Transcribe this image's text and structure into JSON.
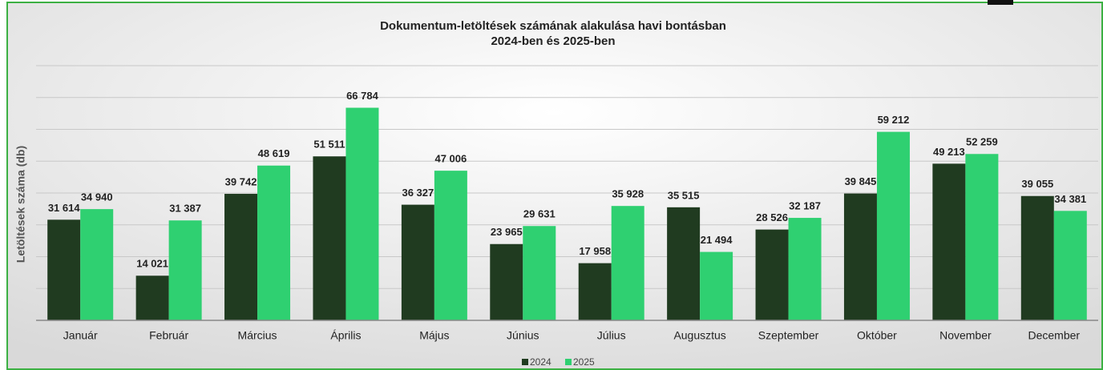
{
  "chart_data": {
    "type": "bar",
    "title": "Dokumentum-letöltések számának alakulása havi bontásban",
    "subtitle": "2024-ben és 2025-ben",
    "y_label": "Letöltések száma (db)",
    "categories": [
      "Január",
      "Február",
      "Március",
      "Április",
      "Május",
      "Június",
      "Július",
      "Augusztus",
      "Szeptember",
      "Október",
      "November",
      "December"
    ],
    "series": [
      {
        "name": "2024",
        "color": "#203b20",
        "values": [
          31614,
          14021,
          39742,
          51511,
          36327,
          23965,
          17958,
          35515,
          28526,
          39845,
          49213,
          39055
        ],
        "value_labels": [
          "31 614",
          "14 021",
          "39 742",
          "51 511",
          "36 327",
          "23 965",
          "17 958",
          "35 515",
          "28 526",
          "39 845",
          "49 213",
          "39 055"
        ]
      },
      {
        "name": "2025",
        "color": "#2fd071",
        "values": [
          34940,
          31387,
          48619,
          66784,
          47006,
          29631,
          35928,
          21494,
          32187,
          59212,
          52259,
          34381
        ],
        "value_labels": [
          "34 940",
          "31 387",
          "48 619",
          "66 784",
          "47 006",
          "29 631",
          "35 928",
          "21 494",
          "32 187",
          "59 212",
          "52 259",
          "34 381"
        ]
      }
    ],
    "ylim": [
      0,
      80000
    ],
    "yticks": [
      0,
      10000,
      20000,
      30000,
      40000,
      50000,
      60000,
      70000,
      80000
    ],
    "grid": true,
    "legend": "bottom"
  }
}
